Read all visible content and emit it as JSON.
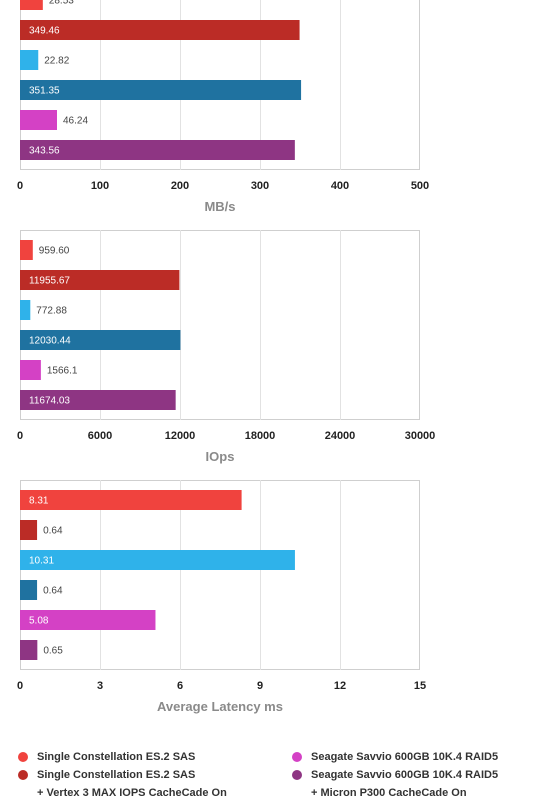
{
  "colors": [
    "#f0433e",
    "#bb2c26",
    "#2fb2ea",
    "#1f72a0",
    "#d441c5",
    "#8e3583"
  ],
  "legend": [
    {
      "lines": [
        "Single Constellation ES.2 SAS"
      ],
      "color": "#f0433e"
    },
    {
      "lines": [
        "Single Constellation ES.2 SAS",
        "+ Vertex 3 MAX IOPS CacheCade On"
      ],
      "color": "#bb2c26"
    },
    {
      "lines": [
        "Seagate Savvio 600GB 10K.4 RAID5"
      ],
      "color": "#d441c5"
    },
    {
      "lines": [
        "Seagate Savvio 600GB 10K.4 RAID5",
        "+ Micron P300 CacheCade On"
      ],
      "color": "#8e3583"
    }
  ],
  "chart_data": [
    {
      "type": "bar",
      "orientation": "horizontal",
      "xlabel": "MB/s",
      "xlim": [
        0,
        500
      ],
      "ticks": [
        0,
        100,
        200,
        300,
        400,
        500
      ],
      "values": [
        28.53,
        349.46,
        22.82,
        351.35,
        46.24,
        343.56
      ],
      "labels": [
        "28.53",
        "349.46",
        "22.82",
        "351.35",
        "46.24",
        "343.56"
      ]
    },
    {
      "type": "bar",
      "orientation": "horizontal",
      "xlabel": "IOps",
      "xlim": [
        0,
        30000
      ],
      "ticks": [
        0,
        6000,
        12000,
        18000,
        24000,
        30000
      ],
      "values": [
        959.6,
        11955.67,
        772.88,
        12030.44,
        1566.1,
        11674.03
      ],
      "labels": [
        "959.60",
        "11955.67",
        "772.88",
        "12030.44",
        "1566.1",
        "11674.03"
      ]
    },
    {
      "type": "bar",
      "orientation": "horizontal",
      "xlabel": "Average Latency ms",
      "xlim": [
        0,
        15
      ],
      "ticks": [
        0,
        3,
        6,
        9,
        12,
        15
      ],
      "values": [
        8.31,
        0.64,
        10.31,
        0.64,
        5.08,
        0.65
      ],
      "labels": [
        "8.31",
        "0.64",
        "10.31",
        "0.64",
        "5.08",
        "0.65"
      ]
    }
  ]
}
